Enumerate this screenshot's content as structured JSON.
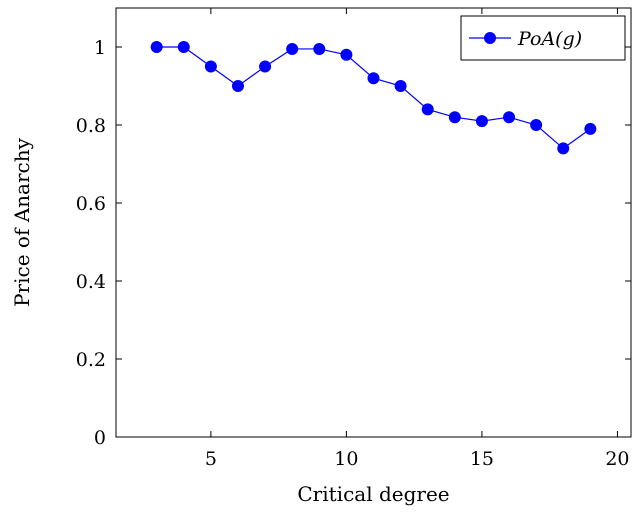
{
  "chart_data": {
    "type": "line",
    "xlabel": "Critical degree",
    "ylabel": "Price of Anarchy",
    "xlim": [
      1.5,
      20.5
    ],
    "ylim": [
      0,
      1.1
    ],
    "xticks": [
      5,
      10,
      15,
      20
    ],
    "yticks": [
      0,
      0.2,
      0.4,
      0.6,
      0.8,
      1
    ],
    "xtick_labels": [
      "5",
      "10",
      "15",
      "20"
    ],
    "ytick_labels": [
      "0",
      "0.2",
      "0.4",
      "0.6",
      "0.8",
      "1"
    ],
    "grid": false,
    "legend_position": "top-right",
    "series": [
      {
        "name": "PoA(g)",
        "color": "#0000ff",
        "marker": "circle",
        "x": [
          3,
          4,
          5,
          6,
          7,
          8,
          9,
          10,
          11,
          12,
          13,
          14,
          15,
          16,
          17,
          18,
          19
        ],
        "y": [
          1.0,
          1.0,
          0.95,
          0.9,
          0.95,
          0.995,
          0.995,
          0.98,
          0.92,
          0.9,
          0.84,
          0.82,
          0.81,
          0.82,
          0.8,
          0.74,
          0.79
        ]
      }
    ]
  }
}
